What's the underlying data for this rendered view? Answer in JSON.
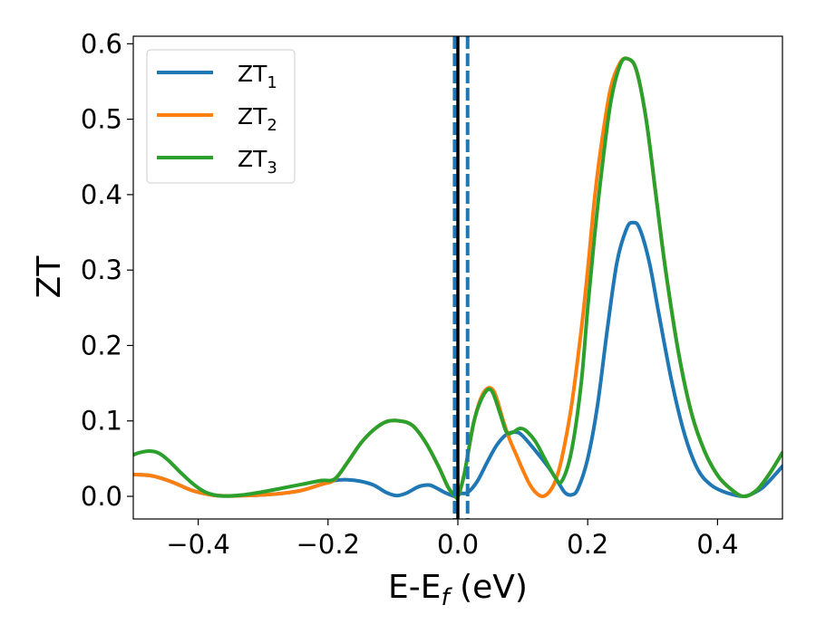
{
  "chart_data": {
    "type": "line",
    "xlabel": "E-E",
    "xlabel_sub": "f",
    "xlabel_unit": " (eV)",
    "ylabel": "ZT",
    "xlim": [
      -0.5,
      0.5
    ],
    "ylim": [
      -0.03,
      0.61
    ],
    "xticks": [
      -0.4,
      -0.2,
      0.0,
      0.2,
      0.4
    ],
    "xtick_labels": [
      "−0.4",
      "−0.2",
      "0.0",
      "0.2",
      "0.4"
    ],
    "yticks": [
      0.0,
      0.1,
      0.2,
      0.3,
      0.4,
      0.5,
      0.6
    ],
    "ytick_labels": [
      "0.0",
      "0.1",
      "0.2",
      "0.3",
      "0.4",
      "0.5",
      "0.6"
    ],
    "grid": false,
    "legend_position": "top-left",
    "vlines": [
      {
        "x": -0.005,
        "style": "dashed",
        "color": "#1f77b4"
      },
      {
        "x": 0.015,
        "style": "dashed",
        "color": "#1f77b4"
      },
      {
        "x": 0.0,
        "style": "solid",
        "color": "#000000"
      }
    ],
    "series": [
      {
        "name": "ZT",
        "sub": "1",
        "color": "#1f77b4",
        "x": [
          -0.5,
          -0.47,
          -0.44,
          -0.41,
          -0.38,
          -0.355,
          -0.33,
          -0.3,
          -0.27,
          -0.24,
          -0.21,
          -0.19,
          -0.17,
          -0.15,
          -0.13,
          -0.11,
          -0.095,
          -0.08,
          -0.06,
          -0.045,
          -0.035,
          -0.02,
          -0.005,
          0.0,
          0.005,
          0.015,
          0.03,
          0.045,
          0.06,
          0.075,
          0.09,
          0.1,
          0.12,
          0.14,
          0.155,
          0.165,
          0.175,
          0.185,
          0.2,
          0.215,
          0.23,
          0.245,
          0.26,
          0.27,
          0.28,
          0.295,
          0.31,
          0.33,
          0.35,
          0.37,
          0.39,
          0.41,
          0.43,
          0.44,
          0.45,
          0.47,
          0.49,
          0.5
        ],
        "y": [
          0.029,
          0.027,
          0.019,
          0.008,
          0.002,
          0.0005,
          0.001,
          0.002,
          0.004,
          0.008,
          0.016,
          0.021,
          0.022,
          0.02,
          0.015,
          0.005,
          0.001,
          0.004,
          0.013,
          0.015,
          0.012,
          0.005,
          0.0,
          0.001,
          0.004,
          0.005,
          0.02,
          0.045,
          0.068,
          0.082,
          0.085,
          0.08,
          0.06,
          0.038,
          0.018,
          0.005,
          0.002,
          0.01,
          0.05,
          0.12,
          0.22,
          0.31,
          0.355,
          0.363,
          0.355,
          0.31,
          0.24,
          0.15,
          0.08,
          0.035,
          0.015,
          0.006,
          0.001,
          0.0,
          0.002,
          0.012,
          0.03,
          0.04
        ]
      },
      {
        "name": "ZT",
        "sub": "2",
        "color": "#ff7f0e",
        "x": [
          -0.5,
          -0.47,
          -0.44,
          -0.41,
          -0.38,
          -0.355,
          -0.33,
          -0.3,
          -0.27,
          -0.24,
          -0.21,
          -0.19,
          -0.17,
          -0.15,
          -0.13,
          -0.11,
          -0.09,
          -0.07,
          -0.05,
          -0.03,
          -0.015,
          -0.005,
          0.0,
          0.01,
          0.025,
          0.04,
          0.055,
          0.07,
          0.08,
          0.09,
          0.1,
          0.11,
          0.12,
          0.13,
          0.14,
          0.15,
          0.16,
          0.175,
          0.19,
          0.2,
          0.21,
          0.22,
          0.235,
          0.25,
          0.262,
          0.275,
          0.29,
          0.305,
          0.32,
          0.34,
          0.36,
          0.38,
          0.4,
          0.42,
          0.44,
          0.46,
          0.48,
          0.5
        ],
        "y": [
          0.029,
          0.027,
          0.019,
          0.008,
          0.002,
          0.0005,
          0.001,
          0.002,
          0.004,
          0.008,
          0.016,
          0.022,
          0.045,
          0.07,
          0.088,
          0.099,
          0.1,
          0.094,
          0.072,
          0.04,
          0.012,
          0.001,
          0.0,
          0.03,
          0.1,
          0.138,
          0.14,
          0.1,
          0.075,
          0.055,
          0.035,
          0.017,
          0.005,
          0.0,
          0.005,
          0.02,
          0.05,
          0.12,
          0.22,
          0.3,
          0.39,
          0.46,
          0.54,
          0.575,
          0.58,
          0.565,
          0.5,
          0.4,
          0.3,
          0.19,
          0.11,
          0.06,
          0.028,
          0.01,
          0.0,
          0.008,
          0.03,
          0.058
        ]
      },
      {
        "name": "ZT",
        "sub": "3",
        "color": "#2ca02c",
        "x": [
          -0.5,
          -0.49,
          -0.475,
          -0.46,
          -0.445,
          -0.43,
          -0.41,
          -0.39,
          -0.37,
          -0.355,
          -0.33,
          -0.3,
          -0.27,
          -0.24,
          -0.21,
          -0.19,
          -0.17,
          -0.15,
          -0.13,
          -0.11,
          -0.09,
          -0.07,
          -0.05,
          -0.03,
          -0.015,
          -0.005,
          0.0,
          0.01,
          0.025,
          0.04,
          0.052,
          0.065,
          0.075,
          0.085,
          0.095,
          0.105,
          0.12,
          0.135,
          0.15,
          0.16,
          0.175,
          0.19,
          0.2,
          0.21,
          0.22,
          0.235,
          0.25,
          0.262,
          0.275,
          0.29,
          0.305,
          0.32,
          0.34,
          0.36,
          0.38,
          0.4,
          0.42,
          0.44,
          0.46,
          0.48,
          0.5
        ],
        "y": [
          0.055,
          0.058,
          0.06,
          0.057,
          0.047,
          0.034,
          0.018,
          0.006,
          0.001,
          0.0005,
          0.002,
          0.006,
          0.011,
          0.016,
          0.021,
          0.023,
          0.045,
          0.07,
          0.088,
          0.099,
          0.1,
          0.094,
          0.072,
          0.04,
          0.012,
          0.001,
          0.0,
          0.03,
          0.1,
          0.135,
          0.14,
          0.11,
          0.085,
          0.085,
          0.09,
          0.087,
          0.072,
          0.048,
          0.025,
          0.02,
          0.06,
          0.15,
          0.25,
          0.34,
          0.42,
          0.52,
          0.572,
          0.58,
          0.565,
          0.5,
          0.4,
          0.3,
          0.19,
          0.11,
          0.06,
          0.028,
          0.01,
          0.0,
          0.008,
          0.03,
          0.058
        ]
      }
    ]
  }
}
